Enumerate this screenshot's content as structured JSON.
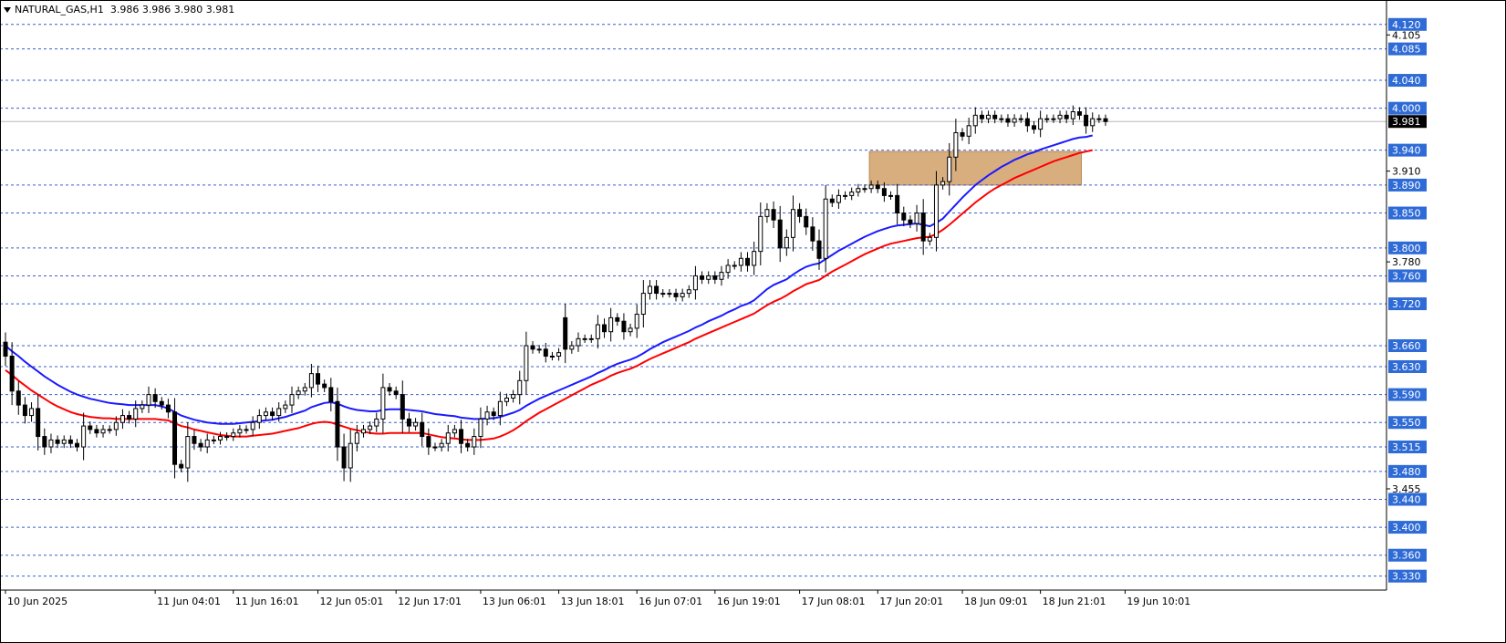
{
  "header": {
    "symbol_label": "NATURAL_GAS,H1",
    "ohlc": "3.986 3.986 3.980 3.981"
  },
  "chart_data": {
    "type": "candlestick",
    "symbol": "NATURAL_GAS",
    "timeframe": "H1",
    "ylim": [
      3.31,
      4.155
    ],
    "current_price": 3.981,
    "current_price_label": "3.981",
    "colors": {
      "bull_body": "#ffffff",
      "bear_body": "#000000",
      "candle_outline": "#000000",
      "ma_fast": "#1a1aff",
      "ma_slow": "#ff0000",
      "level_line": "#3a5fcd",
      "level_badge_bg": "#2e6bd6",
      "zone_fill": "#d2a069",
      "current_price_line": "#b8b8b8",
      "axis_text": "#000000"
    },
    "horizontal_levels": [
      {
        "price": 4.12,
        "label": "4.120"
      },
      {
        "price": 4.085,
        "label": "4.085"
      },
      {
        "price": 4.04,
        "label": "4.040"
      },
      {
        "price": 4.0,
        "label": "4.000"
      },
      {
        "price": 3.94,
        "label": "3.940"
      },
      {
        "price": 3.89,
        "label": "3.890"
      },
      {
        "price": 3.85,
        "label": "3.850"
      },
      {
        "price": 3.8,
        "label": "3.800"
      },
      {
        "price": 3.76,
        "label": "3.760"
      },
      {
        "price": 3.72,
        "label": "3.720"
      },
      {
        "price": 3.66,
        "label": "3.660"
      },
      {
        "price": 3.63,
        "label": "3.630"
      },
      {
        "price": 3.59,
        "label": "3.590"
      },
      {
        "price": 3.55,
        "label": "3.550"
      },
      {
        "price": 3.515,
        "label": "3.515"
      },
      {
        "price": 3.48,
        "label": "3.480"
      },
      {
        "price": 3.44,
        "label": "3.440"
      },
      {
        "price": 3.4,
        "label": "3.400"
      },
      {
        "price": 3.36,
        "label": "3.360"
      },
      {
        "price": 3.33,
        "label": "3.330"
      }
    ],
    "y_tick_labels": [
      {
        "price": 4.105,
        "label": "4.105"
      },
      {
        "price": 3.91,
        "label": "3.910"
      },
      {
        "price": 3.78,
        "label": "3.780"
      },
      {
        "price": 3.455,
        "label": "3.455"
      }
    ],
    "x_tick_labels": [
      {
        "bar": 0,
        "label": "10 Jun 2025"
      },
      {
        "bar": 23,
        "label": "11 Jun 04:01"
      },
      {
        "bar": 35,
        "label": "11 Jun 16:01"
      },
      {
        "bar": 48,
        "label": "12 Jun 05:01"
      },
      {
        "bar": 60,
        "label": "12 Jun 17:01"
      },
      {
        "bar": 73,
        "label": "13 Jun 06:01"
      },
      {
        "bar": 85,
        "label": "13 Jun 18:01"
      },
      {
        "bar": 97,
        "label": "16 Jun 07:01"
      },
      {
        "bar": 109,
        "label": "16 Jun 19:01"
      },
      {
        "bar": 122,
        "label": "17 Jun 08:01"
      },
      {
        "bar": 134,
        "label": "17 Jun 20:01"
      },
      {
        "bar": 147,
        "label": "18 Jun 09:01"
      },
      {
        "bar": 159,
        "label": "18 Jun 21:01"
      },
      {
        "bar": 172,
        "label": "19 Jun 10:01"
      }
    ],
    "zone": {
      "bar_start": 133,
      "bar_end": 165,
      "price_top": 3.938,
      "price_bottom": 3.89
    },
    "closes": [
      3.645,
      3.595,
      3.575,
      3.56,
      3.57,
      3.53,
      3.515,
      3.525,
      3.52,
      3.525,
      3.52,
      3.515,
      3.545,
      3.54,
      3.535,
      3.54,
      3.54,
      3.55,
      3.56,
      3.555,
      3.57,
      3.575,
      3.59,
      3.58,
      3.575,
      3.565,
      3.49,
      3.485,
      3.53,
      3.52,
      3.515,
      3.525,
      3.525,
      3.53,
      3.53,
      3.535,
      3.54,
      3.54,
      3.55,
      3.56,
      3.565,
      3.56,
      3.57,
      3.575,
      3.59,
      3.595,
      3.6,
      3.62,
      3.605,
      3.6,
      3.58,
      3.515,
      3.485,
      3.52,
      3.535,
      3.54,
      3.545,
      3.555,
      3.6,
      3.595,
      3.59,
      3.555,
      3.545,
      3.55,
      3.53,
      3.515,
      3.515,
      3.52,
      3.535,
      3.54,
      3.52,
      3.515,
      3.53,
      3.555,
      3.565,
      3.56,
      3.58,
      3.585,
      3.59,
      3.61,
      3.66,
      3.655,
      3.655,
      3.645,
      3.645,
      3.65,
      3.655,
      3.66,
      3.67,
      3.67,
      3.67,
      3.69,
      3.68,
      3.7,
      3.695,
      3.68,
      3.685,
      3.705,
      3.735,
      3.745,
      3.735,
      3.735,
      3.735,
      3.73,
      3.735,
      3.74,
      3.76,
      3.755,
      3.76,
      3.755,
      3.765,
      3.775,
      3.775,
      3.785,
      3.775,
      3.795,
      3.845,
      3.855,
      3.84,
      3.8,
      3.815,
      3.855,
      3.845,
      3.83,
      3.81,
      3.785,
      3.87,
      3.865,
      3.875,
      3.875,
      3.88,
      3.885,
      3.885,
      3.89,
      3.885,
      3.875,
      3.875,
      3.85,
      3.84,
      3.835,
      3.85,
      3.81,
      3.815,
      3.89,
      3.895,
      3.93,
      3.965,
      3.96,
      3.975,
      3.99,
      3.985,
      3.99,
      3.985,
      3.985,
      3.98,
      3.985,
      3.985,
      3.975,
      3.97,
      3.985,
      3.985,
      3.985,
      3.99,
      3.985,
      3.995,
      3.99,
      3.975,
      3.985,
      3.985,
      3.981
    ],
    "ma_fast": [
      3.66,
      3.652,
      3.645,
      3.637,
      3.63,
      3.623,
      3.616,
      3.61,
      3.604,
      3.599,
      3.594,
      3.59,
      3.587,
      3.584,
      3.582,
      3.58,
      3.578,
      3.577,
      3.576,
      3.575,
      3.575,
      3.575,
      3.575,
      3.575,
      3.573,
      3.57,
      3.565,
      3.56,
      3.557,
      3.554,
      3.552,
      3.55,
      3.549,
      3.548,
      3.548,
      3.548,
      3.549,
      3.55,
      3.551,
      3.552,
      3.553,
      3.554,
      3.556,
      3.558,
      3.561,
      3.564,
      3.567,
      3.572,
      3.575,
      3.578,
      3.579,
      3.577,
      3.573,
      3.57,
      3.568,
      3.567,
      3.566,
      3.566,
      3.568,
      3.569,
      3.569,
      3.569,
      3.568,
      3.567,
      3.566,
      3.564,
      3.562,
      3.561,
      3.56,
      3.559,
      3.557,
      3.556,
      3.555,
      3.555,
      3.556,
      3.556,
      3.558,
      3.561,
      3.564,
      3.568,
      3.574,
      3.579,
      3.584,
      3.588,
      3.592,
      3.596,
      3.6,
      3.604,
      3.608,
      3.612,
      3.616,
      3.621,
      3.625,
      3.63,
      3.634,
      3.637,
      3.64,
      3.644,
      3.649,
      3.655,
      3.66,
      3.665,
      3.669,
      3.673,
      3.677,
      3.681,
      3.686,
      3.69,
      3.695,
      3.699,
      3.703,
      3.708,
      3.712,
      3.717,
      3.72,
      3.725,
      3.733,
      3.741,
      3.747,
      3.751,
      3.755,
      3.762,
      3.768,
      3.773,
      3.776,
      3.778,
      3.784,
      3.79,
      3.796,
      3.801,
      3.806,
      3.811,
      3.816,
      3.82,
      3.824,
      3.827,
      3.83,
      3.832,
      3.833,
      3.834,
      3.835,
      3.833,
      3.831,
      3.836,
      3.842,
      3.852,
      3.862,
      3.872,
      3.881,
      3.89,
      3.897,
      3.904,
      3.91,
      3.916,
      3.921,
      3.926,
      3.93,
      3.934,
      3.937,
      3.941,
      3.944,
      3.947,
      3.95,
      3.953,
      3.956,
      3.958,
      3.959,
      3.961
    ],
    "ma_slow": [
      3.625,
      3.618,
      3.61,
      3.603,
      3.596,
      3.59,
      3.584,
      3.578,
      3.573,
      3.569,
      3.565,
      3.562,
      3.56,
      3.558,
      3.557,
      3.556,
      3.556,
      3.555,
      3.555,
      3.555,
      3.555,
      3.555,
      3.555,
      3.555,
      3.554,
      3.553,
      3.549,
      3.545,
      3.543,
      3.54,
      3.538,
      3.536,
      3.534,
      3.532,
      3.531,
      3.53,
      3.53,
      3.53,
      3.531,
      3.532,
      3.533,
      3.534,
      3.536,
      3.538,
      3.54,
      3.542,
      3.545,
      3.548,
      3.55,
      3.551,
      3.55,
      3.547,
      3.544,
      3.541,
      3.539,
      3.537,
      3.535,
      3.534,
      3.534,
      3.535,
      3.535,
      3.535,
      3.535,
      3.535,
      3.535,
      3.533,
      3.531,
      3.529,
      3.528,
      3.527,
      3.526,
      3.525,
      3.525,
      3.525,
      3.526,
      3.527,
      3.53,
      3.534,
      3.539,
      3.545,
      3.552,
      3.558,
      3.564,
      3.569,
      3.574,
      3.579,
      3.584,
      3.589,
      3.594,
      3.599,
      3.604,
      3.608,
      3.612,
      3.617,
      3.621,
      3.624,
      3.627,
      3.631,
      3.636,
      3.641,
      3.645,
      3.649,
      3.653,
      3.657,
      3.661,
      3.665,
      3.67,
      3.674,
      3.678,
      3.682,
      3.686,
      3.69,
      3.694,
      3.698,
      3.702,
      3.706,
      3.712,
      3.718,
      3.723,
      3.727,
      3.732,
      3.738,
      3.743,
      3.748,
      3.751,
      3.754,
      3.76,
      3.766,
      3.771,
      3.776,
      3.781,
      3.786,
      3.791,
      3.795,
      3.799,
      3.803,
      3.806,
      3.808,
      3.81,
      3.812,
      3.814,
      3.815,
      3.816,
      3.82,
      3.826,
      3.833,
      3.841,
      3.849,
      3.857,
      3.865,
      3.872,
      3.879,
      3.885,
      3.89,
      3.895,
      3.9,
      3.904,
      3.908,
      3.912,
      3.916,
      3.92,
      3.924,
      3.927,
      3.93,
      3.933,
      3.936,
      3.938,
      3.94
    ],
    "gap_after_bar": 85
  }
}
